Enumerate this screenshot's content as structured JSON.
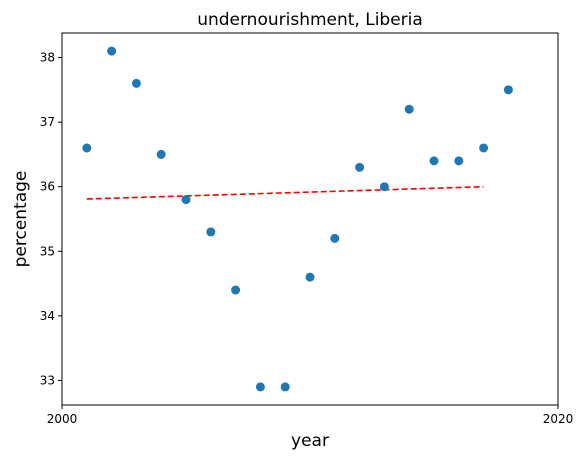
{
  "chart_data": {
    "type": "scatter",
    "title": "undernourishment, Liberia",
    "xlabel": "year",
    "ylabel": "percentage",
    "xlim": [
      2000,
      2020
    ],
    "ylim": [
      32.62,
      38.38
    ],
    "xticks": [
      2000,
      2020
    ],
    "yticks": [
      33,
      34,
      35,
      36,
      37,
      38
    ],
    "grid": false,
    "legend": "none",
    "series": [
      {
        "marker_color": "#1f77b4",
        "x": [
          2001,
          2002,
          2003,
          2004,
          2005,
          2006,
          2007,
          2008,
          2009,
          2010,
          2011,
          2012,
          2013,
          2014,
          2015,
          2016,
          2017,
          2018
        ],
        "y": [
          36.6,
          38.1,
          37.6,
          36.5,
          35.8,
          35.3,
          34.4,
          32.9,
          32.9,
          34.6,
          35.2,
          36.3,
          36.0,
          37.2,
          36.4,
          36.4,
          36.6,
          37.5
        ]
      }
    ],
    "trend_line": {
      "style": "dashed",
      "color": "#ff0000",
      "x": [
        2001,
        2017
      ],
      "y": [
        35.81,
        36.0
      ]
    }
  }
}
